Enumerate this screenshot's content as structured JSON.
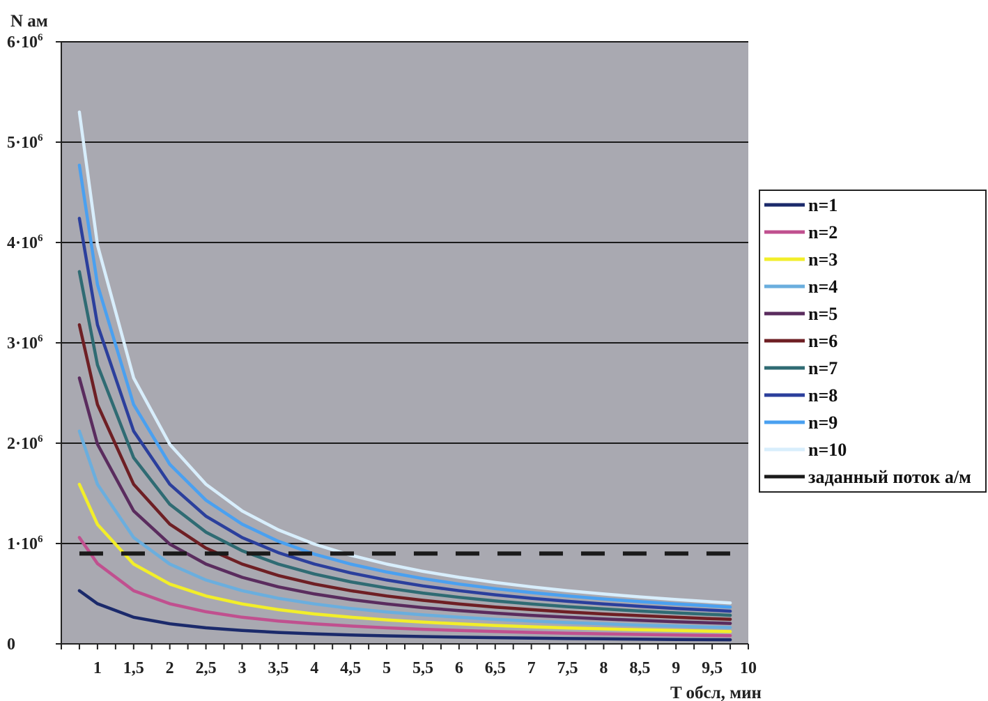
{
  "chart_data": {
    "type": "line",
    "title": "",
    "xlabel": "T обсл, мин",
    "ylabel": "N ам",
    "xlim": [
      0.5,
      10
    ],
    "ylim": [
      0,
      6000000
    ],
    "x_ticks": [
      "1",
      "1,5",
      "2",
      "2,5",
      "3",
      "3,5",
      "4",
      "4,5",
      "5",
      "5,5",
      "6",
      "6,5",
      "7",
      "7,5",
      "8",
      "8,5",
      "9",
      "9,5",
      "10"
    ],
    "x_tick_values": [
      1,
      1.5,
      2,
      2.5,
      3,
      3.5,
      4,
      4.5,
      5,
      5.5,
      6,
      6.5,
      7,
      7.5,
      8,
      8.5,
      9,
      9.5,
      10
    ],
    "y_ticks": [
      {
        "value": 0,
        "mantissa": "0",
        "exponent": ""
      },
      {
        "value": 1000000,
        "mantissa": "1·10",
        "exponent": "6"
      },
      {
        "value": 2000000,
        "mantissa": "2·10",
        "exponent": "6"
      },
      {
        "value": 3000000,
        "mantissa": "3·10",
        "exponent": "6"
      },
      {
        "value": 4000000,
        "mantissa": "4·10",
        "exponent": "6"
      },
      {
        "value": 5000000,
        "mantissa": "5·10",
        "exponent": "6"
      },
      {
        "value": 6000000,
        "mantissa": "6·10",
        "exponent": "6"
      }
    ],
    "grid": "horizontal",
    "legend_position": "right",
    "x": [
      0.75,
      1,
      1.5,
      2,
      2.5,
      3,
      3.5,
      4,
      4.5,
      5,
      5.5,
      6,
      6.5,
      7,
      7.5,
      8,
      8.5,
      9,
      9.5,
      9.75
    ],
    "series": [
      {
        "name": "n=1",
        "color": "#1b2a6b",
        "values": [
          530000,
          400000,
          265000,
          200000,
          160000,
          133000,
          114000,
          100000,
          89000,
          80000,
          73000,
          67000,
          62000,
          57000,
          53000,
          50000,
          47000,
          44000,
          42000,
          41000
        ]
      },
      {
        "name": "n=2",
        "color": "#c0508f",
        "values": [
          1060000,
          800000,
          530000,
          400000,
          320000,
          265000,
          228000,
          200000,
          178000,
          160000,
          145000,
          133000,
          123000,
          114000,
          106000,
          100000,
          94000,
          89000,
          84000,
          82000
        ]
      },
      {
        "name": "n=3",
        "color": "#f2ee2a",
        "values": [
          1590000,
          1190000,
          795000,
          596000,
          477000,
          398000,
          341000,
          298000,
          265000,
          239000,
          217000,
          199000,
          183000,
          170000,
          159000,
          149000,
          140000,
          133000,
          126000,
          122000
        ]
      },
      {
        "name": "n=4",
        "color": "#6aaede",
        "values": [
          2120000,
          1590000,
          1060000,
          795000,
          636000,
          530000,
          454000,
          398000,
          353000,
          318000,
          289000,
          265000,
          245000,
          227000,
          212000,
          199000,
          187000,
          177000,
          167000,
          163000
        ]
      },
      {
        "name": "n=5",
        "color": "#5a2c5e",
        "values": [
          2650000,
          1990000,
          1325000,
          994000,
          795000,
          663000,
          568000,
          497000,
          442000,
          398000,
          361000,
          331000,
          306000,
          284000,
          265000,
          248000,
          234000,
          221000,
          209000,
          204000
        ]
      },
      {
        "name": "n=6",
        "color": "#6e1f24",
        "values": [
          3180000,
          2385000,
          1590000,
          1193000,
          954000,
          795000,
          681000,
          596000,
          530000,
          477000,
          434000,
          398000,
          367000,
          341000,
          318000,
          298000,
          281000,
          265000,
          251000,
          245000
        ]
      },
      {
        "name": "n=7",
        "color": "#2f6b73",
        "values": [
          3710000,
          2780000,
          1855000,
          1391000,
          1113000,
          928000,
          795000,
          696000,
          618000,
          557000,
          506000,
          464000,
          428000,
          398000,
          371000,
          348000,
          327000,
          309000,
          293000,
          285000
        ]
      },
      {
        "name": "n=8",
        "color": "#2b3f9c",
        "values": [
          4240000,
          3180000,
          2120000,
          1590000,
          1272000,
          1060000,
          909000,
          795000,
          707000,
          636000,
          578000,
          530000,
          489000,
          454000,
          424000,
          398000,
          374000,
          353000,
          335000,
          326000
        ]
      },
      {
        "name": "n=9",
        "color": "#4aa0f0",
        "values": [
          4770000,
          3580000,
          2385000,
          1789000,
          1431000,
          1193000,
          1022000,
          894000,
          795000,
          716000,
          651000,
          596000,
          550000,
          511000,
          477000,
          447000,
          421000,
          398000,
          377000,
          367000
        ]
      },
      {
        "name": "n=10",
        "color": "#d8eefc",
        "values": [
          5300000,
          3975000,
          2650000,
          1988000,
          1590000,
          1325000,
          1136000,
          994000,
          883000,
          795000,
          723000,
          663000,
          612000,
          568000,
          530000,
          497000,
          468000,
          442000,
          419000,
          408000
        ]
      }
    ],
    "reference_line": {
      "name": "заданный поток а/м",
      "color": "#1a1a1a",
      "value": 900000,
      "x_range": [
        0.75,
        9.75
      ],
      "style": "dashed"
    }
  }
}
